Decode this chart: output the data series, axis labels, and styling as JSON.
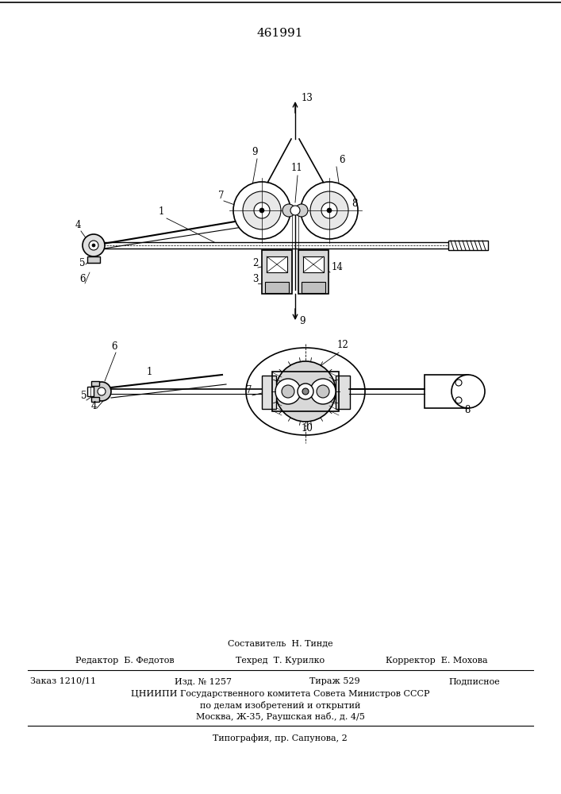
{
  "patent_number": "461991",
  "background_color": "#ffffff",
  "footer": {
    "sostavitel": "Составитель  Н. Тинде",
    "editor_label": "Редактор  Б. Федотов",
    "tekhred_label": "Техред  Т. Курилко",
    "korrektor_label": "Корректор  Е. Мохова",
    "zakaz": "Заказ 1210/11",
    "izd": "Изд. № 1257",
    "tirazh": "Тираж 529",
    "podpisnoe": "Подписное",
    "tsniipи": "ЦНИИПИ Государственного комитета Совета Министров СССР",
    "po_delam": "по делам изобретений и открытий",
    "moskva": "Москва, Ж-35, Раушская наб., д. 4/5",
    "tipografiya": "Типография, пр. Сапунова, 2"
  }
}
